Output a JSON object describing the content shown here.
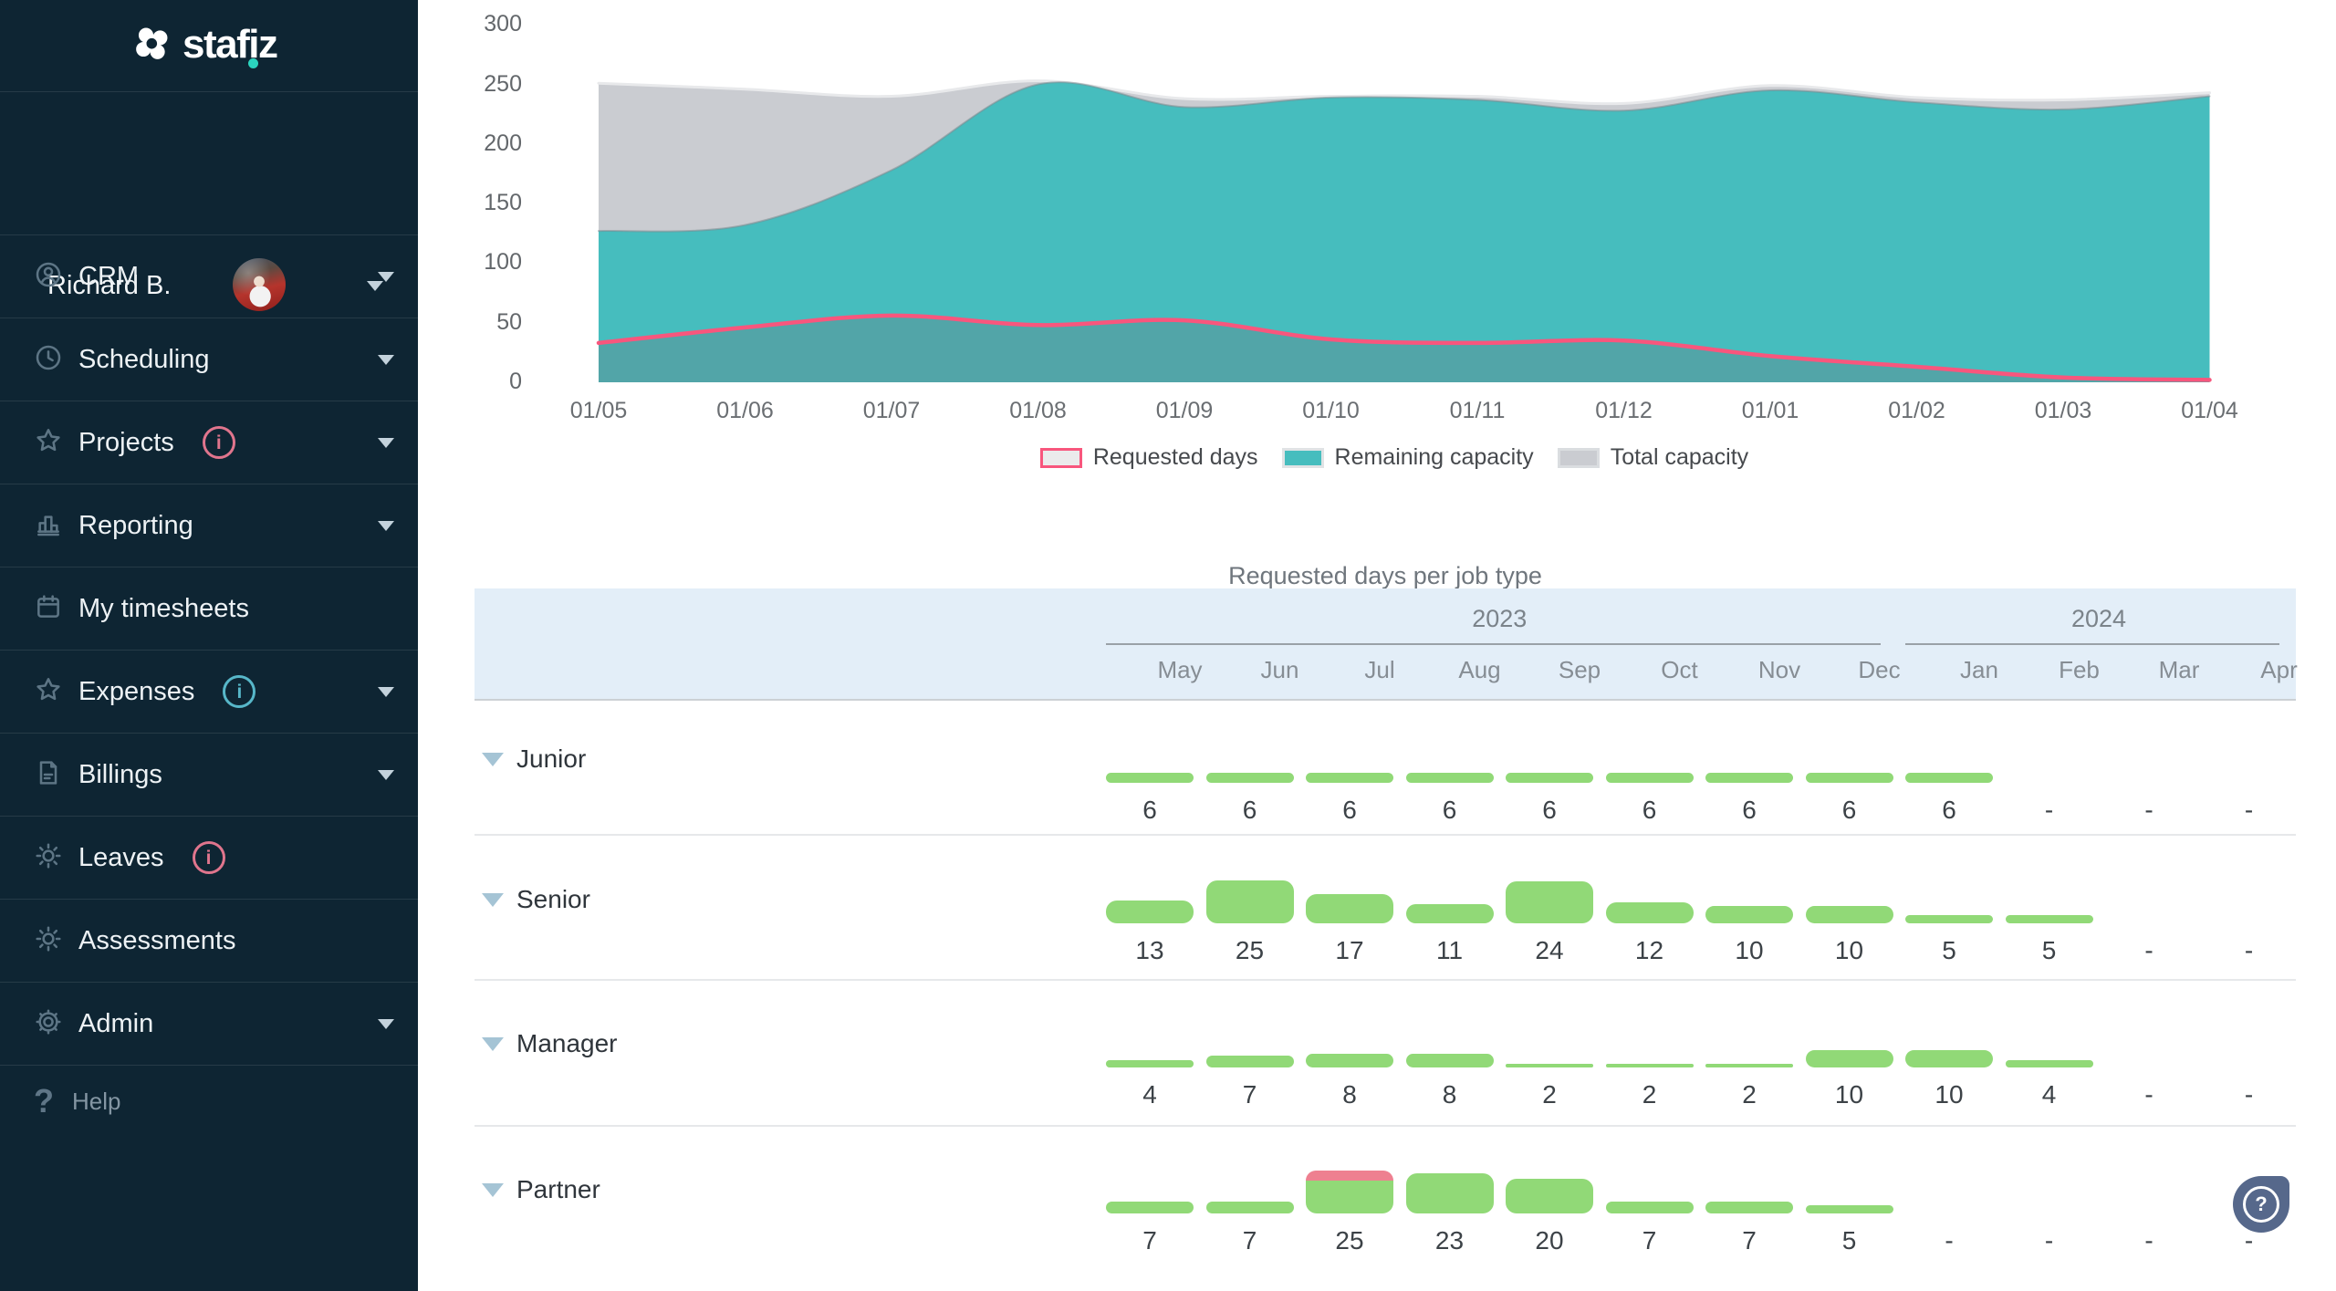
{
  "sidebar": {
    "logo_text": "stafiz",
    "user": {
      "name": "Richard B."
    },
    "items": [
      {
        "label": "CRM",
        "icon": "user-circle-icon",
        "chevron": true
      },
      {
        "label": "Scheduling",
        "icon": "clock-icon",
        "chevron": true
      },
      {
        "label": "Projects",
        "icon": "star-icon",
        "chevron": true,
        "info": "pink"
      },
      {
        "label": "Reporting",
        "icon": "bar-chart-icon",
        "chevron": true
      },
      {
        "label": "My timesheets",
        "icon": "calendar-icon",
        "chevron": false
      },
      {
        "label": "Expenses",
        "icon": "star-icon",
        "chevron": true,
        "info": "teal"
      },
      {
        "label": "Billings",
        "icon": "document-icon",
        "chevron": true
      },
      {
        "label": "Leaves",
        "icon": "sun-icon",
        "chevron": false,
        "info": "pink"
      },
      {
        "label": "Assessments",
        "icon": "sun-icon",
        "chevron": false
      },
      {
        "label": "Admin",
        "icon": "gear-icon",
        "chevron": true
      }
    ],
    "help_label": "Help"
  },
  "colors": {
    "sidebar_bg": "#0e2533",
    "accent_teal_dot": "#2bd4be",
    "bar_green": "#91d977",
    "bar_overflow_pink": "#ee8090",
    "band_blue": "#e3eef8",
    "triangle_blue": "#a5c4d5",
    "info_pink": "#e0758d",
    "info_teal": "#57b7c9",
    "help_fab": "#56688b"
  },
  "chart_data": [
    {
      "type": "area",
      "x": [
        "01/05",
        "01/06",
        "01/07",
        "01/08",
        "01/09",
        "01/10",
        "01/11",
        "01/12",
        "01/01",
        "01/02",
        "01/03",
        "01/04"
      ],
      "series": [
        {
          "name": "Requested days",
          "values": [
            33,
            46,
            56,
            48,
            52,
            36,
            33,
            35,
            22,
            13,
            4,
            2
          ],
          "line_color": "#f8567d",
          "line_width": 4.5,
          "fill_color": "rgba(108,114,120,0.32)",
          "swatch_fill": "#ebebec",
          "swatch_border": "#f8567d"
        },
        {
          "name": "Remaining capacity",
          "values": [
            127,
            132,
            178,
            250,
            231,
            239,
            237,
            228,
            245,
            235,
            229,
            240
          ],
          "line_color": "rgba(125,138,143,0.55)",
          "line_width": 2,
          "fill_color": "#46bdbe",
          "swatch_fill": "#46bdbe",
          "swatch_border": "#e0e3e5"
        },
        {
          "name": "Total capacity",
          "values": [
            251,
            246,
            240,
            253,
            238,
            240,
            240,
            234,
            249,
            239,
            237,
            243
          ],
          "line_color": "#e8e9eb",
          "line_width": 3,
          "fill_color": "#caccd1",
          "swatch_fill": "#caccd1",
          "swatch_border": "#dadde0"
        }
      ],
      "ylim": [
        0,
        300
      ],
      "yticks": [
        0,
        50,
        100,
        150,
        200,
        250,
        300
      ],
      "grid": false,
      "legend_position": "bottom"
    },
    {
      "type": "bar-table",
      "title": "Requested days per job type",
      "year_groups": [
        {
          "label": "2023",
          "cols": 8
        },
        {
          "label": "2024",
          "cols": 4
        }
      ],
      "months": [
        "May",
        "Jun",
        "Jul",
        "Aug",
        "Sep",
        "Oct",
        "Nov",
        "Dec",
        "Jan",
        "Feb",
        "Mar",
        "Apr"
      ],
      "empty_marker": "-",
      "rows": [
        {
          "label": "Junior",
          "values": [
            6,
            6,
            6,
            6,
            6,
            6,
            6,
            6,
            6,
            null,
            null,
            null
          ]
        },
        {
          "label": "Senior",
          "values": [
            13,
            25,
            17,
            11,
            24,
            12,
            10,
            10,
            5,
            5,
            null,
            null
          ]
        },
        {
          "label": "Manager",
          "values": [
            4,
            7,
            8,
            8,
            2,
            2,
            2,
            10,
            10,
            4,
            null,
            null
          ]
        },
        {
          "label": "Partner",
          "values": [
            7,
            7,
            25,
            23,
            20,
            7,
            7,
            5,
            null,
            null,
            null,
            null
          ],
          "overflow_month_index": 2
        }
      ]
    }
  ]
}
